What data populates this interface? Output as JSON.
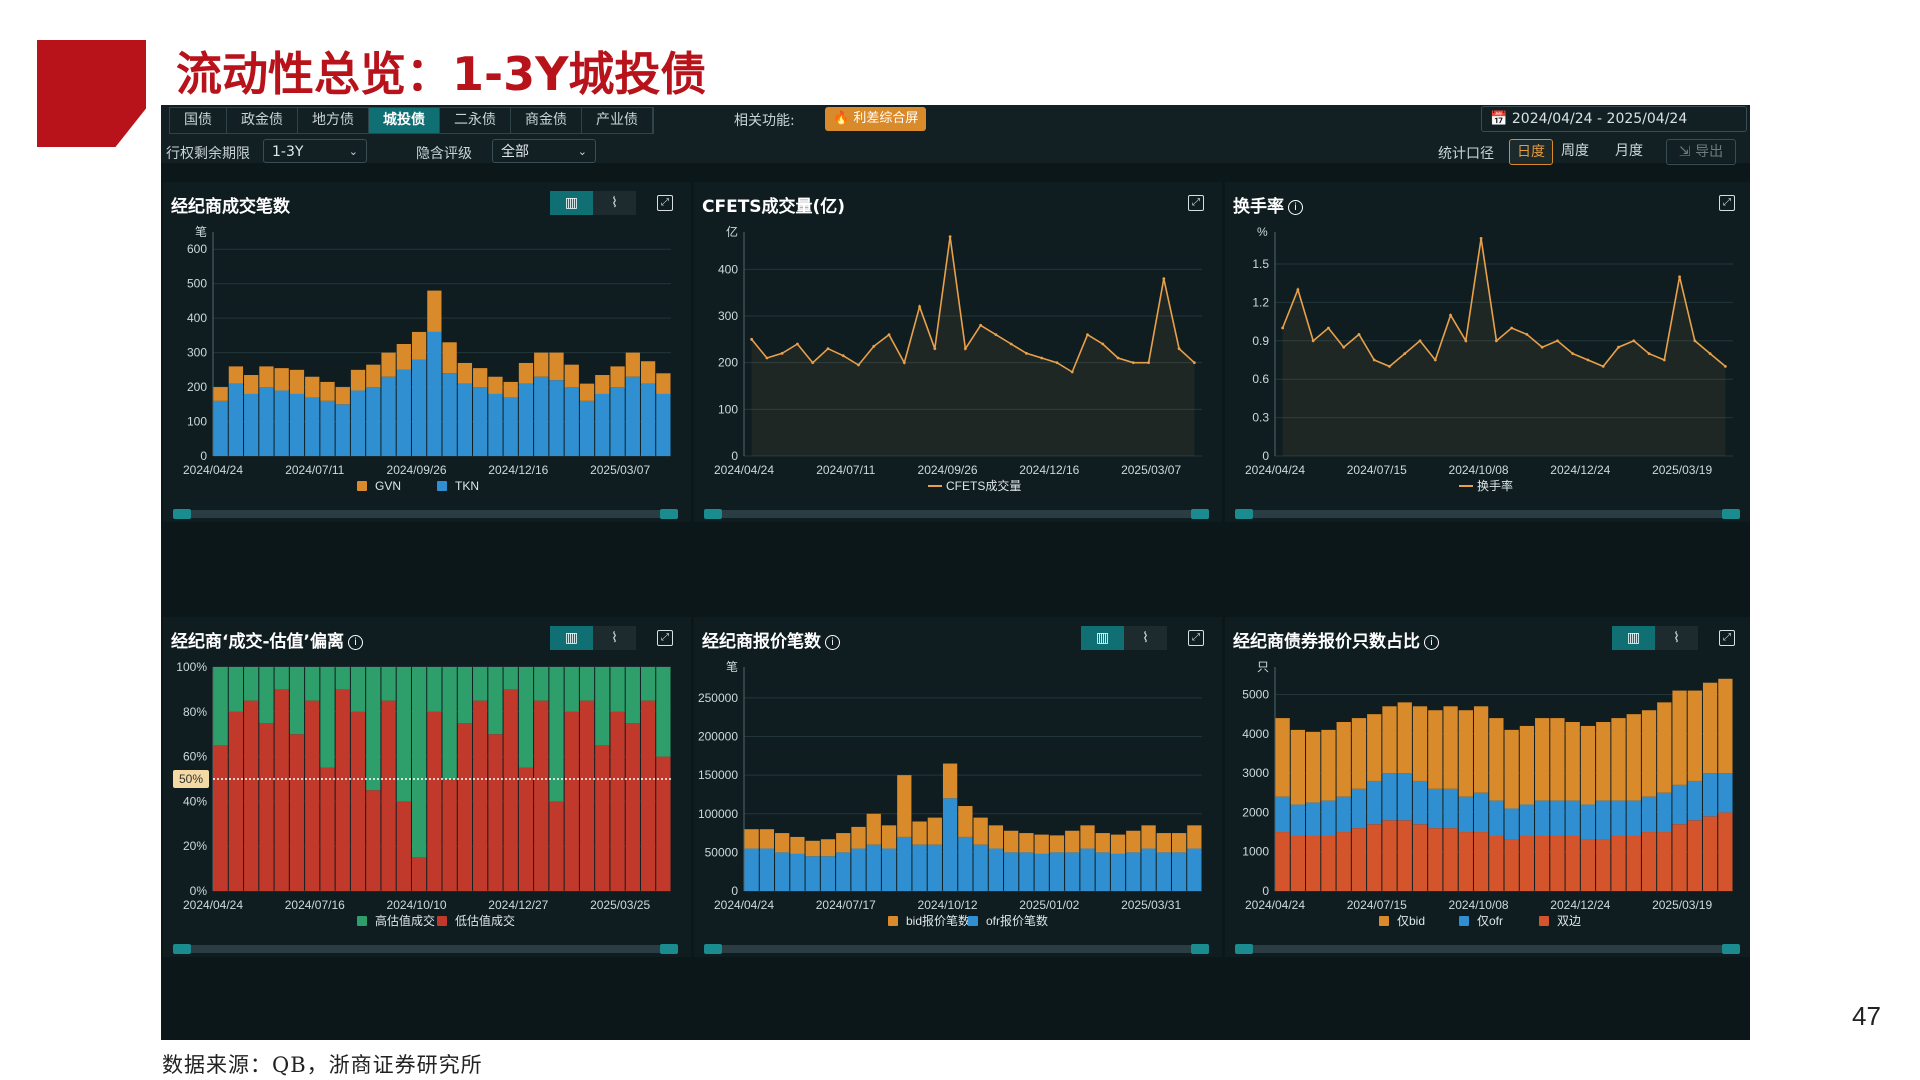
{
  "slide": {
    "title": "流动性总览：1-3Y城投债",
    "page_number": "47",
    "source": "数据来源：QB，浙商证券研究所"
  },
  "toolbar": {
    "tabs": [
      {
        "label": "国债",
        "active": false
      },
      {
        "label": "政金债",
        "active": false
      },
      {
        "label": "地方债",
        "active": false
      },
      {
        "label": "城投债",
        "active": true
      },
      {
        "label": "二永债",
        "active": false
      },
      {
        "label": "商金债",
        "active": false
      },
      {
        "label": "产业债",
        "active": false
      }
    ],
    "related_label": "相关功能:",
    "related_button": "利差综合屏",
    "date_range": "2024/04/24  -  2025/04/24",
    "term_label": "行权剩余期限",
    "term_value": "1-3Y",
    "rating_label": "隐含评级",
    "rating_value": "全部",
    "stat_label": "统计口径",
    "period_buttons": [
      {
        "label": "日度",
        "active": true
      },
      {
        "label": "周度",
        "active": false
      },
      {
        "label": "月度",
        "active": false
      }
    ],
    "export_label": "导出",
    "colors": {
      "accent": "#0f6f72",
      "orange": "#d98a2b"
    }
  },
  "panels": [
    {
      "title": "经纪商成交笔数",
      "has_info": false,
      "has_toggle": true
    },
    {
      "title": "CFETS成交量(亿)",
      "has_info": false,
      "has_toggle": false
    },
    {
      "title": "换手率",
      "has_info": true,
      "has_toggle": false
    },
    {
      "title": "经纪商‘成交-估值’偏离",
      "has_info": true,
      "has_toggle": true
    },
    {
      "title": "经纪商报价笔数",
      "has_info": true,
      "has_toggle": true
    },
    {
      "title": "经纪商债券报价只数占比",
      "has_info": true,
      "has_toggle": true
    }
  ],
  "chart_data": [
    {
      "type": "bar",
      "stacked": true,
      "unit": "笔",
      "ylim": [
        0,
        650
      ],
      "yticks": [
        0,
        100,
        200,
        300,
        400,
        500,
        600
      ],
      "xticks": [
        "2024/04/24",
        "2024/07/11",
        "2024/09/26",
        "2024/12/16",
        "2025/03/07"
      ],
      "series": [
        {
          "name": "GVN",
          "color": "#d98a2b",
          "values": [
            40,
            50,
            55,
            60,
            65,
            70,
            60,
            55,
            50,
            60,
            65,
            70,
            75,
            80,
            120,
            90,
            60,
            55,
            50,
            45,
            60,
            70,
            80,
            65,
            50,
            55,
            60,
            70,
            65,
            60
          ]
        },
        {
          "name": "TKN",
          "color": "#2f8fd0",
          "values": [
            160,
            210,
            180,
            200,
            190,
            180,
            170,
            160,
            150,
            190,
            200,
            230,
            250,
            280,
            360,
            240,
            210,
            200,
            180,
            170,
            210,
            230,
            220,
            200,
            160,
            180,
            200,
            230,
            210,
            180
          ]
        }
      ]
    },
    {
      "type": "line",
      "unit": "亿",
      "ylim": [
        0,
        480
      ],
      "yticks": [
        0,
        100,
        200,
        300,
        400
      ],
      "xticks": [
        "2024/04/24",
        "2024/07/11",
        "2024/09/26",
        "2024/12/16",
        "2025/03/07"
      ],
      "series": [
        {
          "name": "CFETS成交量",
          "color": "#e8a04a",
          "values": [
            250,
            210,
            220,
            240,
            200,
            230,
            215,
            195,
            235,
            260,
            200,
            320,
            230,
            470,
            230,
            280,
            260,
            240,
            220,
            210,
            200,
            180,
            260,
            240,
            210,
            200,
            200,
            380,
            230,
            200
          ]
        }
      ]
    },
    {
      "type": "line",
      "unit": "%",
      "ylim": [
        0,
        1.75
      ],
      "yticks": [
        0,
        0.3,
        0.6,
        0.9,
        1.2,
        1.5
      ],
      "xticks": [
        "2024/04/24",
        "2024/07/15",
        "2024/10/08",
        "2024/12/24",
        "2025/03/19"
      ],
      "series": [
        {
          "name": "换手率",
          "color": "#e8a04a",
          "values": [
            1.0,
            1.3,
            0.9,
            1.0,
            0.85,
            0.95,
            0.75,
            0.7,
            0.8,
            0.9,
            0.75,
            1.1,
            0.9,
            1.7,
            0.9,
            1.0,
            0.95,
            0.85,
            0.9,
            0.8,
            0.75,
            0.7,
            0.85,
            0.9,
            0.8,
            0.75,
            1.4,
            0.9,
            0.8,
            0.7
          ]
        }
      ]
    },
    {
      "type": "bar",
      "stacked": true,
      "percent": true,
      "ylim": [
        0,
        100
      ],
      "yticks": [
        "0%",
        "20%",
        "40%",
        "60%",
        "80%",
        "100%"
      ],
      "reference_line": "50%",
      "xticks": [
        "2024/04/24",
        "2024/07/16",
        "2024/10/10",
        "2024/12/27",
        "2025/03/25"
      ],
      "series": [
        {
          "name": "高估值成交",
          "color": "#2e9e6a",
          "values": [
            35,
            20,
            15,
            25,
            10,
            30,
            15,
            45,
            10,
            20,
            55,
            15,
            60,
            85,
            20,
            50,
            25,
            15,
            30,
            10,
            45,
            15,
            60,
            20,
            15,
            35,
            20,
            25,
            15,
            40
          ]
        },
        {
          "name": "低估值成交",
          "color": "#c0392b",
          "values": [
            65,
            80,
            85,
            75,
            90,
            70,
            85,
            55,
            90,
            80,
            45,
            85,
            40,
            15,
            80,
            50,
            75,
            85,
            70,
            90,
            55,
            85,
            40,
            80,
            85,
            65,
            80,
            75,
            85,
            60
          ]
        }
      ]
    },
    {
      "type": "bar",
      "stacked": true,
      "unit": "笔",
      "ylim": [
        0,
        290000
      ],
      "yticks": [
        0,
        50000,
        100000,
        150000,
        200000,
        250000
      ],
      "xticks": [
        "2024/04/24",
        "2024/07/17",
        "2024/10/12",
        "2025/01/02",
        "2025/03/31"
      ],
      "series": [
        {
          "name": "bid报价笔数",
          "color": "#d98a2b",
          "values": [
            25000,
            25000,
            25000,
            22000,
            20000,
            22000,
            25000,
            28000,
            40000,
            30000,
            80000,
            30000,
            35000,
            45000,
            40000,
            35000,
            30000,
            28000,
            25000,
            25000,
            22000,
            28000,
            30000,
            25000,
            25000,
            28000,
            30000,
            25000,
            25000,
            30000
          ]
        },
        {
          "name": "ofr报价笔数",
          "color": "#2f8fd0",
          "values": [
            55000,
            55000,
            50000,
            48000,
            45000,
            45000,
            50000,
            55000,
            60000,
            55000,
            70000,
            60000,
            60000,
            120000,
            70000,
            60000,
            55000,
            50000,
            50000,
            48000,
            50000,
            50000,
            55000,
            50000,
            48000,
            50000,
            55000,
            50000,
            50000,
            55000
          ]
        }
      ]
    },
    {
      "type": "bar",
      "stacked": true,
      "unit": "只",
      "ylim": [
        0,
        5700
      ],
      "yticks": [
        0,
        1000,
        2000,
        3000,
        4000,
        5000
      ],
      "xticks": [
        "2024/04/24",
        "2024/07/15",
        "2024/10/08",
        "2024/12/24",
        "2025/03/19"
      ],
      "series": [
        {
          "name": "仅bid",
          "color": "#d98a2b",
          "values": [
            2000,
            1900,
            1800,
            1800,
            1900,
            1800,
            1700,
            1700,
            1800,
            1900,
            2000,
            2100,
            2200,
            2200,
            2100,
            2000,
            2000,
            2100,
            2100,
            2000,
            2000,
            2000,
            2100,
            2200,
            2200,
            2300,
            2400,
            2300,
            2300,
            2400
          ]
        },
        {
          "name": "仅ofr",
          "color": "#2f8fd0",
          "values": [
            900,
            800,
            850,
            900,
            900,
            1000,
            1100,
            1200,
            1200,
            1100,
            1000,
            1000,
            900,
            1000,
            900,
            800,
            800,
            900,
            900,
            900,
            900,
            1000,
            900,
            900,
            900,
            1000,
            1000,
            1000,
            1100,
            1000
          ]
        },
        {
          "name": "双边",
          "color": "#d4552b",
          "values": [
            1500,
            1400,
            1400,
            1400,
            1500,
            1600,
            1700,
            1800,
            1800,
            1700,
            1600,
            1600,
            1500,
            1500,
            1400,
            1300,
            1400,
            1400,
            1400,
            1400,
            1300,
            1300,
            1400,
            1400,
            1500,
            1500,
            1700,
            1800,
            1900,
            2000
          ]
        }
      ]
    }
  ]
}
